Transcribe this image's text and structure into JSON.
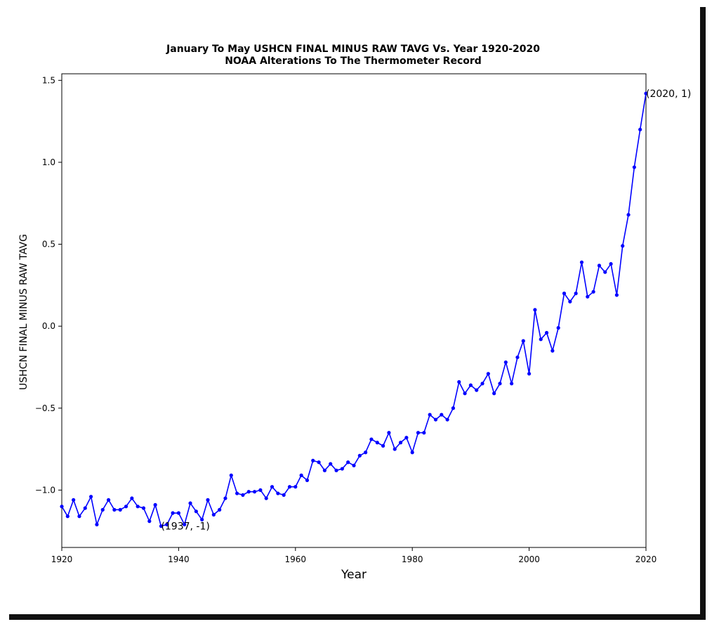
{
  "chart_data": {
    "type": "line",
    "title": "January To May USHCN FINAL MINUS RAW TAVG Vs. Year 1920-2020",
    "subtitle": "NOAA Alterations To The Thermometer Record",
    "xlabel": "Year",
    "ylabel": "USHCN FINAL MINUS RAW TAVG",
    "xlim": [
      1920,
      2020
    ],
    "ylim": [
      -1.35,
      1.54
    ],
    "x_ticks": [
      1920,
      1940,
      1960,
      1980,
      2000,
      2020
    ],
    "y_ticks": [
      -1.0,
      -0.5,
      0.0,
      0.5,
      1.0,
      1.5
    ],
    "y_tick_labels": [
      "−1.0",
      "−0.5",
      "0.0",
      "0.5",
      "1.0",
      "1.5"
    ],
    "grid": false,
    "color": "#0000ff",
    "x": [
      1920,
      1921,
      1922,
      1923,
      1924,
      1925,
      1926,
      1927,
      1928,
      1929,
      1930,
      1931,
      1932,
      1933,
      1934,
      1935,
      1936,
      1937,
      1938,
      1939,
      1940,
      1941,
      1942,
      1943,
      1944,
      1945,
      1946,
      1947,
      1948,
      1949,
      1950,
      1951,
      1952,
      1953,
      1954,
      1955,
      1956,
      1957,
      1958,
      1959,
      1960,
      1961,
      1962,
      1963,
      1964,
      1965,
      1966,
      1967,
      1968,
      1969,
      1970,
      1971,
      1972,
      1973,
      1974,
      1975,
      1976,
      1977,
      1978,
      1979,
      1980,
      1981,
      1982,
      1983,
      1984,
      1985,
      1986,
      1987,
      1988,
      1989,
      1990,
      1991,
      1992,
      1993,
      1994,
      1995,
      1996,
      1997,
      1998,
      1999,
      2000,
      2001,
      2002,
      2003,
      2004,
      2005,
      2006,
      2007,
      2008,
      2009,
      2010,
      2011,
      2012,
      2013,
      2014,
      2015,
      2016,
      2017,
      2018,
      2019,
      2020
    ],
    "values": [
      -1.1,
      -1.16,
      -1.06,
      -1.16,
      -1.11,
      -1.04,
      -1.21,
      -1.12,
      -1.06,
      -1.12,
      -1.12,
      -1.1,
      -1.05,
      -1.1,
      -1.11,
      -1.19,
      -1.09,
      -1.22,
      -1.21,
      -1.14,
      -1.14,
      -1.21,
      -1.08,
      -1.13,
      -1.18,
      -1.06,
      -1.15,
      -1.12,
      -1.05,
      -0.91,
      -1.02,
      -1.03,
      -1.01,
      -1.01,
      -1.0,
      -1.05,
      -0.98,
      -1.02,
      -1.03,
      -0.98,
      -0.98,
      -0.91,
      -0.94,
      -0.82,
      -0.83,
      -0.88,
      -0.84,
      -0.88,
      -0.87,
      -0.83,
      -0.85,
      -0.79,
      -0.77,
      -0.69,
      -0.71,
      -0.73,
      -0.65,
      -0.75,
      -0.71,
      -0.68,
      -0.77,
      -0.65,
      -0.65,
      -0.54,
      -0.57,
      -0.54,
      -0.57,
      -0.5,
      -0.34,
      -0.41,
      -0.36,
      -0.39,
      -0.35,
      -0.29,
      -0.41,
      -0.35,
      -0.22,
      -0.35,
      -0.19,
      -0.09,
      -0.29,
      0.1,
      -0.08,
      -0.04,
      -0.15,
      -0.01,
      0.2,
      0.15,
      0.2,
      0.39,
      0.18,
      0.21,
      0.37,
      0.33,
      0.38,
      0.19,
      0.49,
      0.68,
      0.97,
      1.2,
      1.42
    ],
    "annotations": [
      {
        "text": "(1937, -1)",
        "x": 1937,
        "y": -1.22
      },
      {
        "text": "(2020, 1)",
        "x": 2020,
        "y": 1.42
      }
    ]
  }
}
